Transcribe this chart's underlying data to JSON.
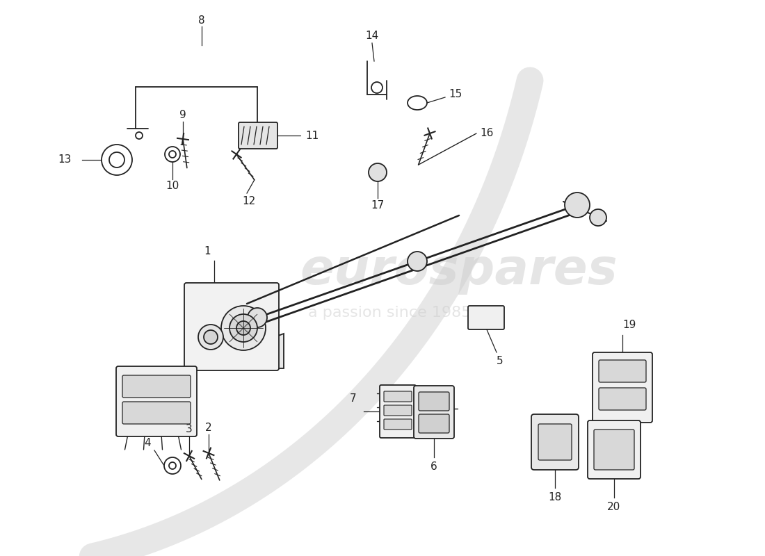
{
  "bg_color": "#ffffff",
  "line_color": "#222222",
  "wm1": "eurospares",
  "wm2": "a passion since 1985",
  "fig_w": 11.0,
  "fig_h": 8.0
}
